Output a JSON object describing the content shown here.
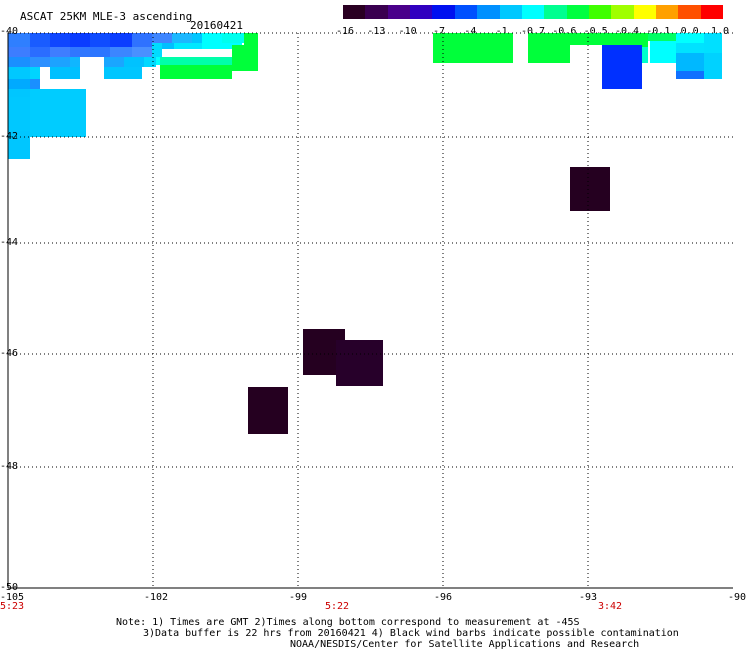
{
  "title": "ASCAT 25KM MLE-3 ascending",
  "date": "20160421",
  "colorbar": {
    "colors": [
      "#2a0022",
      "#3a0050",
      "#4a008a",
      "#3000c0",
      "#0010f0",
      "#0050ff",
      "#0090ff",
      "#00c8ff",
      "#00ffff",
      "#00ff90",
      "#00ff40",
      "#40ff00",
      "#a0ff00",
      "#ffff00",
      "#ffa000",
      "#ff5000",
      "#ff0000"
    ],
    "labels": [
      "-16",
      "-13",
      "-10",
      "-7",
      "-4",
      "-1",
      "-0.7",
      "-0.6",
      "-0.5",
      "-0.4",
      "-0.1",
      "0.0",
      "1.0"
    ]
  },
  "axes": {
    "x_ticks": [
      "-105",
      "-102",
      "-99",
      "-96",
      "-93",
      "-90"
    ],
    "y_ticks": [
      "-40",
      "-42",
      "-44",
      "-46",
      "-48",
      "-50"
    ],
    "x_range": [
      -105,
      -90
    ],
    "y_range": [
      -50,
      -40
    ]
  },
  "time_labels": [
    "5:23",
    "5:22",
    "3:42"
  ],
  "note": {
    "line1": "Note: 1) Times are GMT 2)Times along bottom correspond to measurement at -45S",
    "line2": "3)Data buffer is 22 hrs from 20160421 4) Black wind barbs indicate possible contamination",
    "line3": "NOAA/NESDIS/Center for Satellite Applications and Research"
  }
}
